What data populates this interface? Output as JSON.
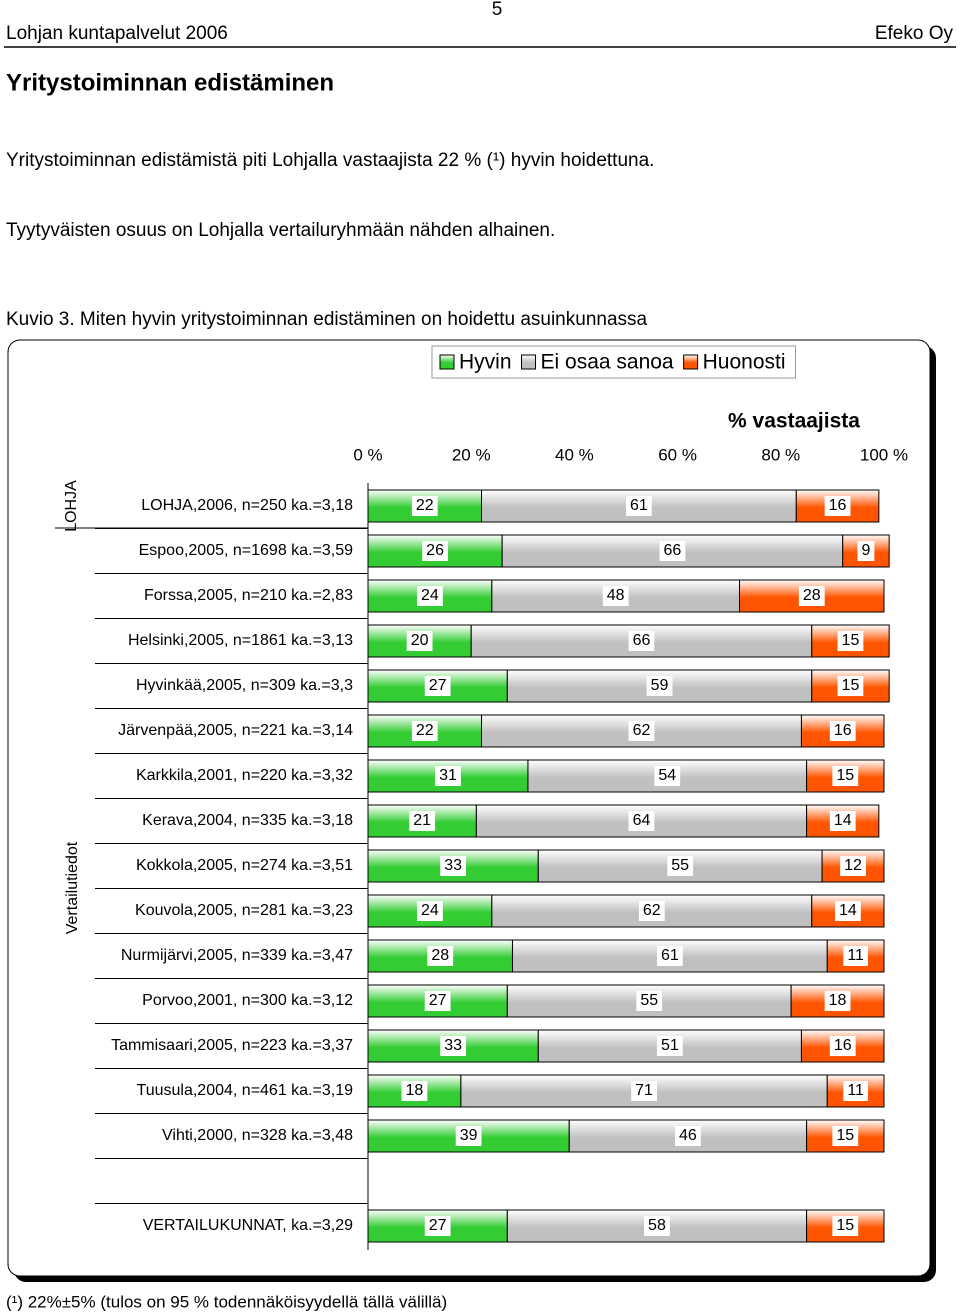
{
  "header": {
    "left": "Lohjan kuntapalvelut 2006",
    "page": "5",
    "right": "Efeko Oy"
  },
  "title": "Yritystoiminnan edistäminen",
  "paragraphs": [
    "Yritystoiminnan edistämistä piti Lohjalla vastaajista 22 % (¹) hyvin hoidettuna.",
    "Tyytyväisten osuus on Lohjalla vertailuryhmään nähden alhainen."
  ],
  "caption": "Kuvio 3. Miten hyvin yritystoiminnan edistäminen on hoidettu asuinkunnassa",
  "footnote": "(¹) 22%±5% (tulos on 95 % todennäköisyydellä tällä välillä)",
  "chart_data": {
    "type": "stacked-bar-horizontal",
    "x_label": "% vastaajista",
    "groups": [
      "LOHJA",
      "Vertailutiedot"
    ],
    "categories": [
      "LOHJA,2006, n=250 ka.=3,18",
      "Espoo,2005, n=1698 ka.=3,59",
      "Forssa,2005, n=210 ka.=2,83",
      "Helsinki,2005, n=1861 ka.=3,13",
      "Hyvinkää,2005, n=309 ka.=3,3",
      "Järvenpää,2005, n=221 ka.=3,14",
      "Karkkila,2001, n=220 ka.=3,32",
      "Kerava,2004, n=335 ka.=3,18",
      "Kokkola,2005, n=274 ka.=3,51",
      "Kouvola,2005, n=281 ka.=3,23",
      "Nurmijärvi,2005, n=339 ka.=3,47",
      "Porvoo,2001, n=300 ka.=3,12",
      "Tammisaari,2005, n=223 ka.=3,37",
      "Tuusula,2004, n=461 ka.=3,19",
      "Vihti,2000, n=328 ka.=3,48",
      null,
      "VERTAILUKUNNAT, ka.=3,29"
    ],
    "series": [
      {
        "name": "Hyvin",
        "color": "#33cc33",
        "values": [
          22,
          26,
          24,
          20,
          27,
          22,
          31,
          21,
          33,
          24,
          28,
          27,
          33,
          18,
          39,
          null,
          27
        ]
      },
      {
        "name": "Ei osaa sanoa",
        "color": "#c0c0c0",
        "values": [
          61,
          66,
          48,
          66,
          59,
          62,
          54,
          64,
          55,
          62,
          61,
          55,
          51,
          71,
          46,
          null,
          58
        ]
      },
      {
        "name": "Huonosti",
        "color": "#ff5500",
        "values": [
          16,
          9,
          28,
          15,
          15,
          16,
          15,
          14,
          12,
          14,
          11,
          18,
          16,
          11,
          15,
          null,
          15
        ]
      }
    ],
    "xlim": [
      0,
      100
    ],
    "xticks": [
      {
        "value": 0,
        "label": "0 %"
      },
      {
        "value": 20,
        "label": "20 %"
      },
      {
        "value": 40,
        "label": "40 %"
      },
      {
        "value": 60,
        "label": "60 %"
      },
      {
        "value": 80,
        "label": "80 %"
      },
      {
        "value": 100,
        "label": "100 %"
      }
    ]
  }
}
